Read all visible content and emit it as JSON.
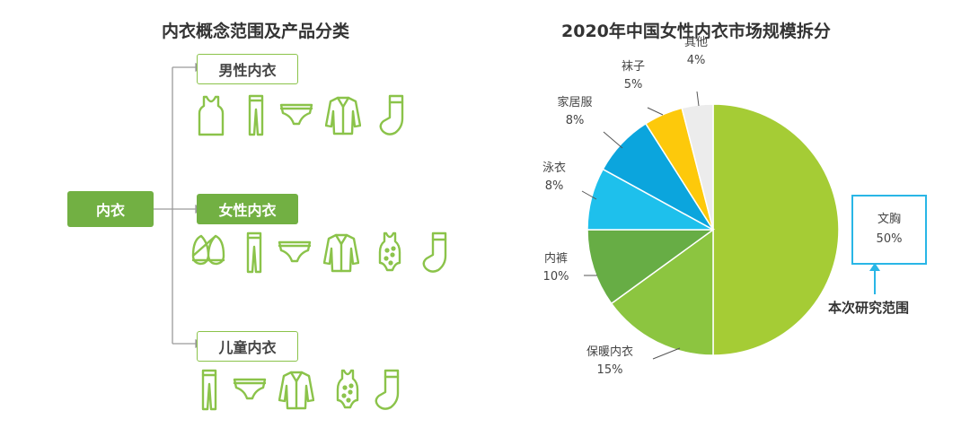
{
  "left": {
    "title": "内衣概念范围及产品分类",
    "root": "内衣",
    "branches": [
      {
        "label": "男性内衣",
        "icons": [
          "tank-top-icon",
          "leggings-icon",
          "briefs-icon",
          "cardigan-icon",
          "sock-icon"
        ]
      },
      {
        "label": "女性内衣",
        "icons": [
          "bra-icon",
          "leggings-icon",
          "briefs-icon",
          "cardigan-icon",
          "onesie-icon",
          "sock-icon"
        ]
      },
      {
        "label": "儿童内衣",
        "icons": [
          "leggings-icon",
          "briefs-icon",
          "cardigan-icon",
          "onesie-icon",
          "sock-icon"
        ]
      }
    ],
    "colors": {
      "icon": "#8bc34a",
      "filled": "#72b043"
    }
  },
  "chart_data": {
    "type": "pie",
    "title": "2020年中国女性内衣市场规模拆分",
    "slices": [
      {
        "name": "文胸",
        "value": 50,
        "label": "50%",
        "color": "#a5cc35"
      },
      {
        "name": "保暖内衣",
        "value": 15,
        "label": "15%",
        "color": "#8cc540"
      },
      {
        "name": "内裤",
        "value": 10,
        "label": "10%",
        "color": "#67ad45"
      },
      {
        "name": "泳衣",
        "value": 8,
        "label": "8%",
        "color": "#1ec0ec"
      },
      {
        "name": "家居服",
        "value": 8,
        "label": "8%",
        "color": "#0ba5dd"
      },
      {
        "name": "袜子",
        "value": 5,
        "label": "5%",
        "color": "#fdc90b"
      },
      {
        "name": "其他",
        "value": 4,
        "label": "4%",
        "color": "#ececec"
      }
    ],
    "highlight": {
      "slice": "文胸",
      "note": "本次研究范围",
      "color": "#29b6e6"
    }
  }
}
